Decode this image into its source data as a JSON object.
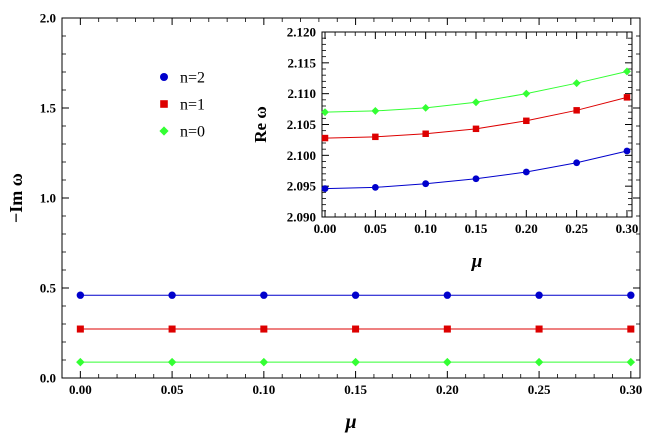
{
  "chart_data": [
    {
      "id": "main",
      "type": "line",
      "x": [
        0.0,
        0.05,
        0.1,
        0.15,
        0.2,
        0.25,
        0.3
      ],
      "xlim": [
        -0.01,
        0.305
      ],
      "ylim": [
        0.0,
        2.0
      ],
      "xticks": [
        0.0,
        0.05,
        0.1,
        0.15,
        0.2,
        0.25,
        0.3
      ],
      "xtick_labels": [
        "0.00",
        "0.05",
        "0.10",
        "0.15",
        "0.20",
        "0.25",
        "0.30"
      ],
      "yticks": [
        0.0,
        0.5,
        1.0,
        1.5,
        2.0
      ],
      "ytick_labels": [
        "0.0",
        "0.5",
        "1.0",
        "1.5",
        "2.0"
      ],
      "xlabel": "μ",
      "ylabel": "−Im ω",
      "series": [
        {
          "name": "n=2",
          "color": "#0000cc",
          "marker": "circle",
          "values": [
            0.46,
            0.46,
            0.46,
            0.46,
            0.46,
            0.46,
            0.46
          ]
        },
        {
          "name": "n=1",
          "color": "#dd0000",
          "marker": "square",
          "values": [
            0.272,
            0.272,
            0.272,
            0.272,
            0.272,
            0.272,
            0.272
          ]
        },
        {
          "name": "n=0",
          "color": "#33ff33",
          "marker": "diamond",
          "values": [
            0.088,
            0.088,
            0.088,
            0.088,
            0.088,
            0.088,
            0.088
          ]
        }
      ],
      "legend": [
        "n=2",
        "n=1",
        "n=0"
      ],
      "legend_position": "upper-left inside"
    },
    {
      "id": "inset",
      "type": "line",
      "x": [
        0.0,
        0.05,
        0.1,
        0.15,
        0.2,
        0.25,
        0.3
      ],
      "xlim": [
        -0.003,
        0.305
      ],
      "ylim": [
        2.09,
        2.12
      ],
      "xticks": [
        0.0,
        0.05,
        0.1,
        0.15,
        0.2,
        0.25,
        0.3
      ],
      "xtick_labels": [
        "0.00",
        "0.05",
        "0.10",
        "0.15",
        "0.20",
        "0.25",
        "0.30"
      ],
      "yticks": [
        2.09,
        2.095,
        2.1,
        2.105,
        2.11,
        2.115,
        2.12
      ],
      "ytick_labels": [
        "2.090",
        "2.095",
        "2.100",
        "2.105",
        "2.110",
        "2.115",
        "2.120"
      ],
      "xlabel": "μ",
      "ylabel": "Re ω",
      "series": [
        {
          "name": "n=2",
          "color": "#0000cc",
          "marker": "circle",
          "values": [
            2.0946,
            2.0948,
            2.0954,
            2.0962,
            2.0973,
            2.0988,
            2.1007
          ]
        },
        {
          "name": "n=1",
          "color": "#dd0000",
          "marker": "square",
          "values": [
            2.1028,
            2.103,
            2.1035,
            2.1043,
            2.1056,
            2.1073,
            2.1094
          ]
        },
        {
          "name": "n=0",
          "color": "#33ff33",
          "marker": "diamond",
          "values": [
            2.107,
            2.1072,
            2.1077,
            2.1086,
            2.11,
            2.1117,
            2.1136
          ]
        }
      ]
    }
  ]
}
